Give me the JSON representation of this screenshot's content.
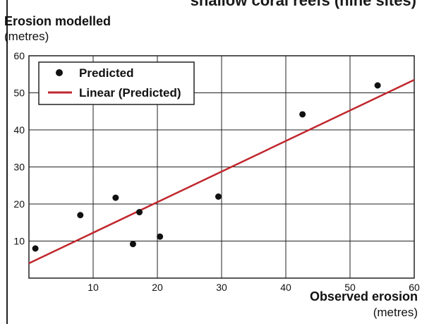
{
  "header": {
    "partial_title": "shallow coral reefs (nine sites)"
  },
  "chart_data": {
    "type": "scatter",
    "title": "",
    "ylabel": "Erosion modelled",
    "ylabel_unit": "(metres)",
    "xlabel": "Observed erosion",
    "xlabel_unit": "(metres)",
    "xlim": [
      0,
      60
    ],
    "ylim": [
      0,
      60
    ],
    "xticks": [
      "10",
      "20",
      "30",
      "40",
      "50",
      "60"
    ],
    "yticks": [
      "10",
      "20",
      "30",
      "40",
      "50",
      "60"
    ],
    "grid": true,
    "legend_position": "top-left",
    "series": [
      {
        "name": "Predicted",
        "marker": "dot",
        "color": "#111111",
        "x": [
          1,
          8,
          13.5,
          16.2,
          17.2,
          20.4,
          29.5,
          42.6,
          54.3
        ],
        "y": [
          8,
          17,
          21.7,
          9.2,
          17.8,
          11.2,
          22,
          44.2,
          52
        ]
      },
      {
        "name": "Linear (Predicted)",
        "type": "line",
        "color": "#c0272d",
        "x": [
          0,
          60
        ],
        "y": [
          4,
          53.5
        ]
      }
    ]
  }
}
